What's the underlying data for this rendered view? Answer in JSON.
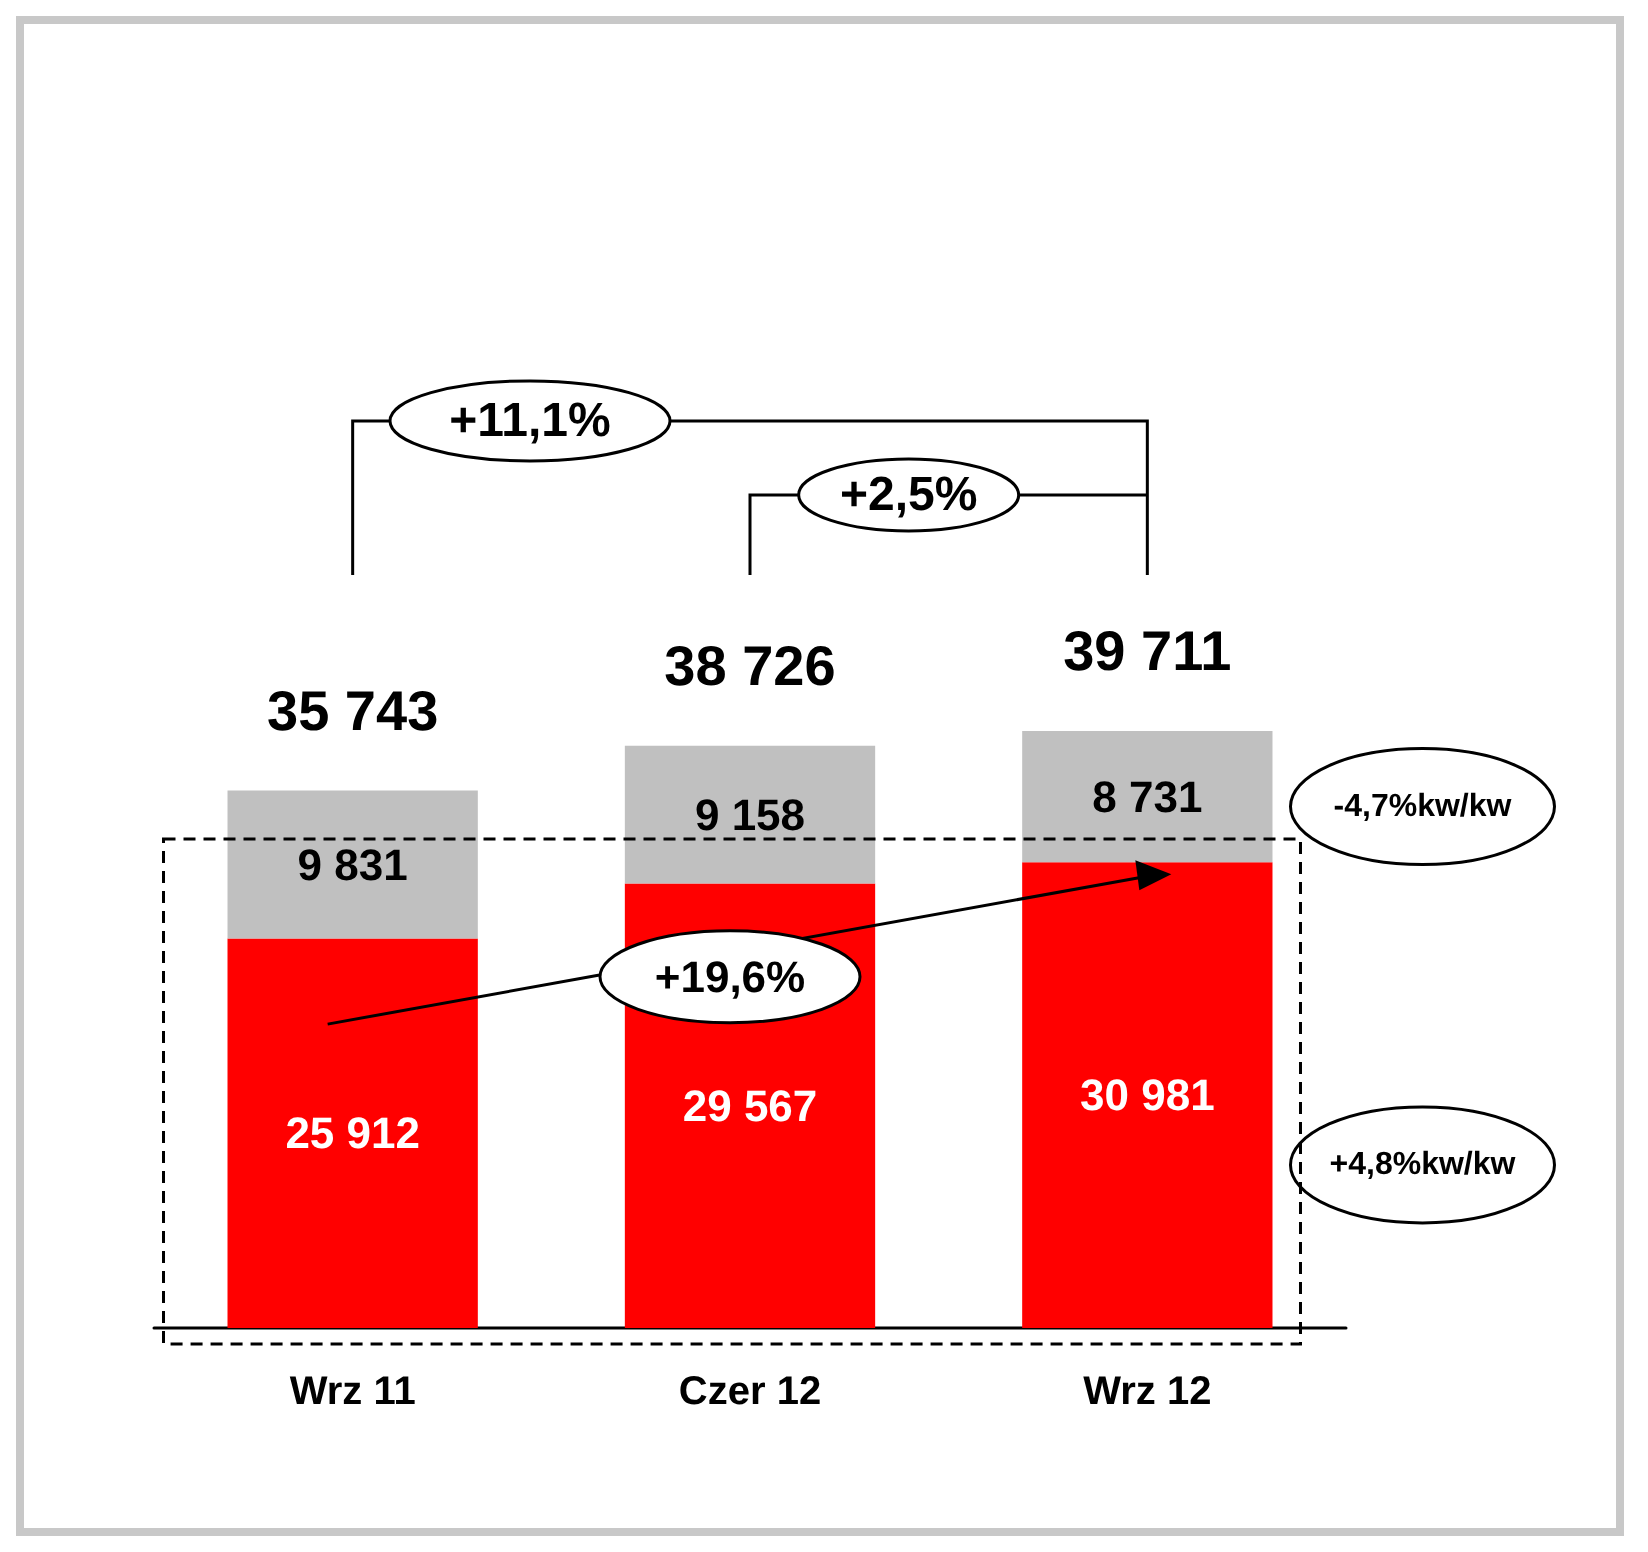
{
  "chart_data": {
    "type": "bar",
    "stacked": true,
    "categories": [
      "Wrz 11",
      "Czer 12",
      "Wrz 12"
    ],
    "series": [
      {
        "color": "#ff0000",
        "values": [
          25912,
          29567,
          30981
        ],
        "value_labels": [
          "25 912",
          "29 567",
          "30 981"
        ]
      },
      {
        "color": "#c0c0c0",
        "values": [
          9831,
          9158,
          8731
        ],
        "value_labels": [
          "9 831",
          "9 158",
          "8 731"
        ]
      }
    ],
    "totals": [
      "35 743",
      "38 726",
      "39 711"
    ],
    "annotations": [
      "+11,1%",
      "+2,5%",
      "+19,6%",
      "-4,7%kw/kw",
      "+4,8%kw/kw"
    ]
  }
}
